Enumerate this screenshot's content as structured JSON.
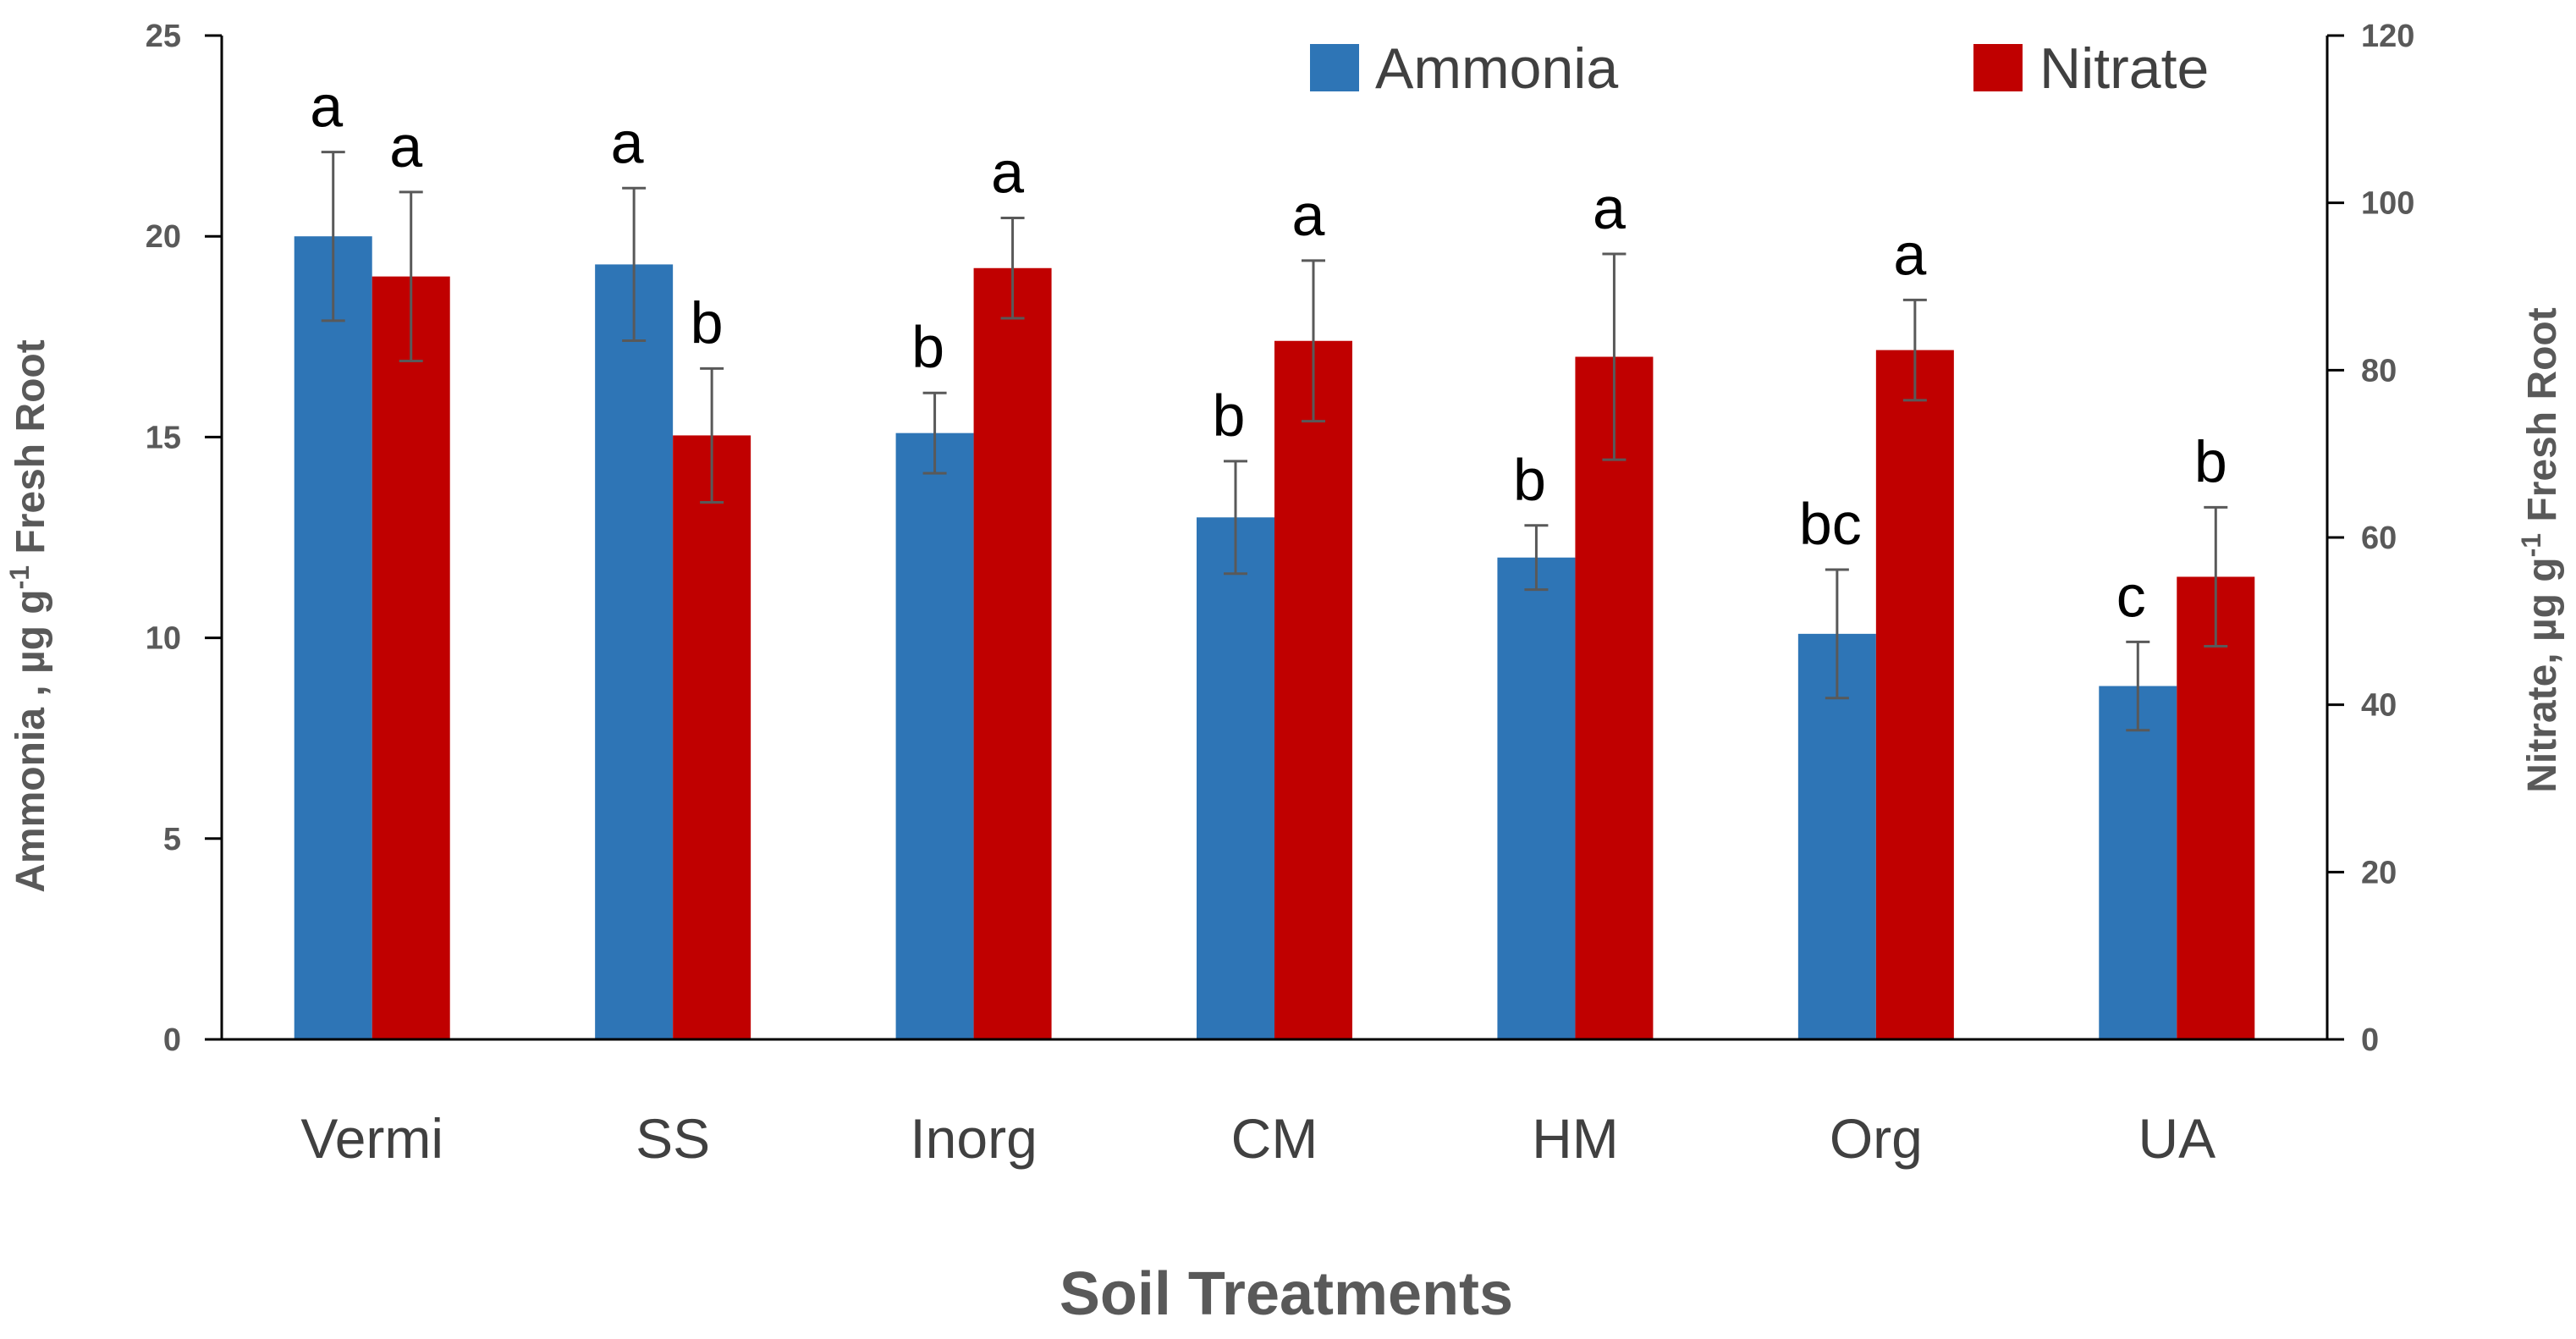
{
  "chart_data": {
    "type": "bar",
    "title": "",
    "xlabel": "Soil Treatments",
    "ylabel_left": {
      "pre": "Ammonia , µg g",
      "sup": "-1",
      "post": " Fresh Root"
    },
    "ylabel_right": {
      "pre": "Nitrate, µg g",
      "sup": "-1",
      "post": " Fresh Root"
    },
    "categories": [
      "Vermi",
      "SS",
      "Inorg",
      "CM",
      "HM",
      "Org",
      "UA"
    ],
    "left_axis": {
      "min": 0,
      "max": 25,
      "ticks": [
        "0",
        "5",
        "10",
        "15",
        "20",
        "25"
      ]
    },
    "right_axis": {
      "min": 0,
      "max": 120,
      "ticks": [
        "0",
        "20",
        "40",
        "60",
        "80",
        "100",
        "120"
      ]
    },
    "legend_position": "top-right",
    "series": [
      {
        "name": "Ammonia",
        "axis": "left",
        "color": "#2E75B6",
        "values": [
          20.0,
          19.3,
          15.1,
          13.0,
          12.0,
          10.1,
          8.8
        ],
        "errors": [
          2.1,
          1.9,
          1.0,
          1.4,
          0.8,
          1.6,
          1.1
        ],
        "letters": [
          "a",
          "a",
          "b",
          "b",
          "b",
          "bc",
          "c"
        ]
      },
      {
        "name": "Nitrate",
        "axis": "right",
        "color": "#C00000",
        "values": [
          91.2,
          72.2,
          92.2,
          83.5,
          81.6,
          82.4,
          55.3
        ],
        "errors": [
          10.1,
          8.0,
          6.0,
          9.6,
          12.3,
          6.0,
          8.3
        ],
        "letters": [
          "a",
          "b",
          "a",
          "a",
          "a",
          "a",
          "b"
        ]
      }
    ]
  }
}
